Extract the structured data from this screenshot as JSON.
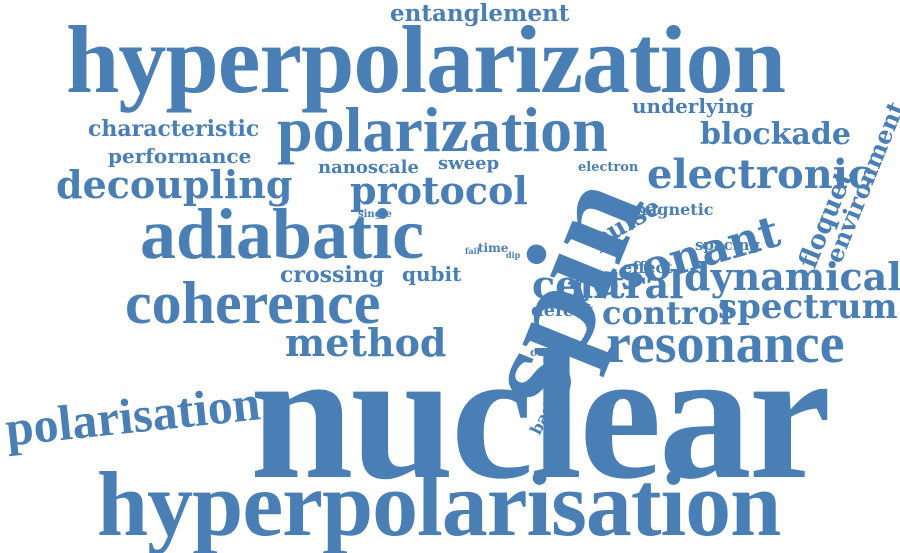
{
  "cloud": {
    "color": "#4a7fb5",
    "words": {
      "entanglement": "entanglement",
      "hyperpolarization": "hyperpolarization",
      "underlying": "underlying",
      "characteristic": "characteristic",
      "polarization": "polarization",
      "blockade": "blockade",
      "environment": "environment",
      "performance": "performance",
      "nanoscale": "nanoscale",
      "sweep": "sweep",
      "electron": "electron",
      "electronic": "electronic",
      "decoupling": "decoupling",
      "protocol": "protocol",
      "floquet": "floquet",
      "single": "single",
      "pulse": "pulse",
      "magnetic": "magnetic",
      "adiabatic": "adiabatic",
      "spin": "spin",
      "resonant": "resonant",
      "fail": "fail",
      "time": "time",
      "dip": "dip",
      "spacing": "spacing",
      "crossing": "crossing",
      "qubit": "qubit",
      "effect": "effect",
      "dynamical": "dynamical",
      "coherence": "coherence",
      "central": "central",
      "spectrum": "spectrum",
      "defect": "defect",
      "control": "control",
      "polarisation": "polarisation",
      "method": "method",
      "resonance": "resonance",
      "center": "center",
      "based": "based",
      "nuclear": "nuclear",
      "hyperpolarisation": "hyperpolarisation"
    }
  }
}
